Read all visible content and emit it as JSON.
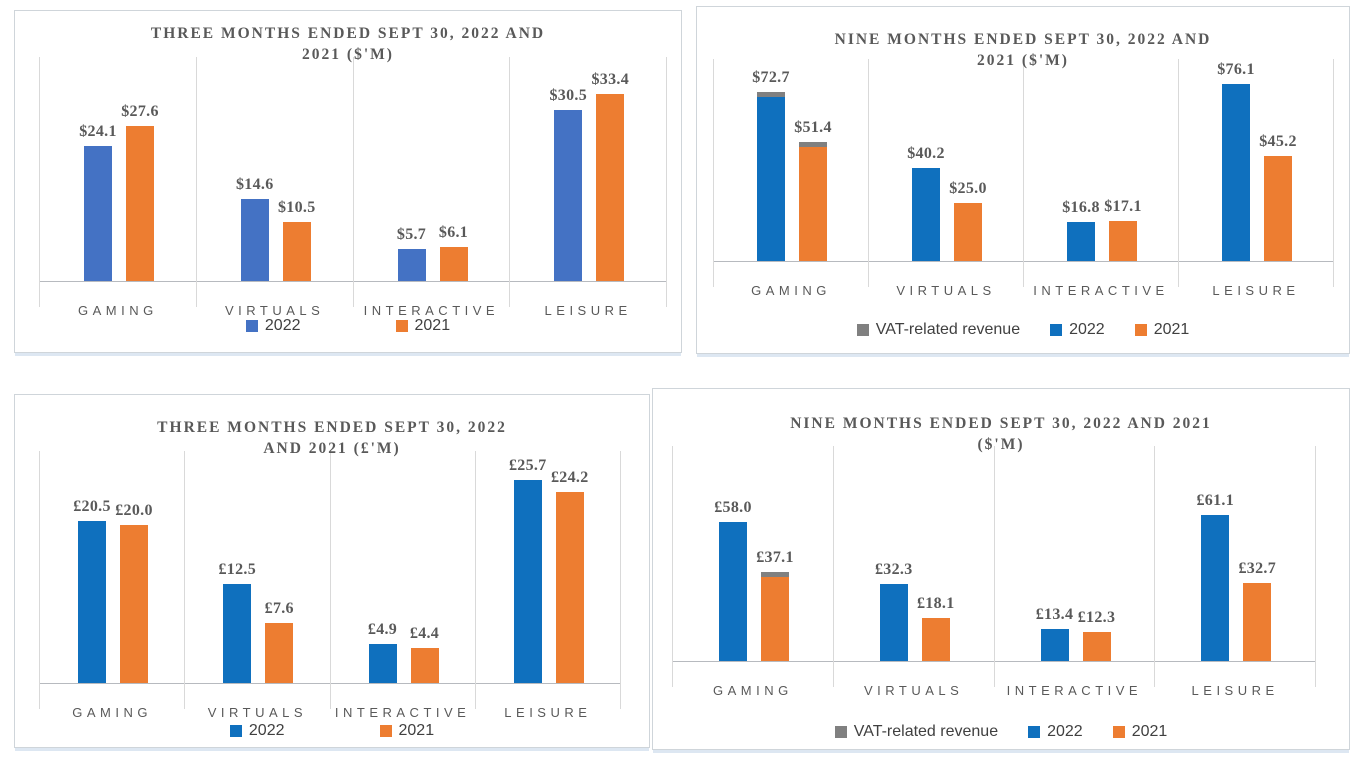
{
  "page": {
    "background": "#FFFFFF"
  },
  "colors": {
    "accent_blue_muted": "#4472C4",
    "accent_blue_vivid": "#0F70BE",
    "accent_orange": "#ED7D31",
    "vat_gray": "#808080",
    "text_gray": "#595959",
    "gridline": "#D9D9D9",
    "axis_line": "#B7BABF",
    "panel_border": "#CFD5DA",
    "panel_shadow": "#DDE7F2"
  },
  "chart_data": [
    {
      "type": "bar",
      "title": "THREE MONTHS ENDED SEPT 30, 2022 AND 2021 ($'M)",
      "title_lines": [
        "THREE MONTHS ENDED SEPT 30, 2022 AND",
        "2021 ($'M)"
      ],
      "categories": [
        "GAMING",
        "VIRTUALS",
        "INTERACTIVE",
        "LEISURE"
      ],
      "series": [
        {
          "name": "2022",
          "color": "#4472C4",
          "values": [
            24.1,
            14.6,
            5.7,
            30.5
          ],
          "labels": [
            "$24.1",
            "$14.6",
            "$5.7",
            "$30.5"
          ],
          "vat_caps": [
            false,
            false,
            false,
            false
          ]
        },
        {
          "name": "2021",
          "color": "#ED7D31",
          "values": [
            27.6,
            10.5,
            6.1,
            33.4
          ],
          "labels": [
            "$27.6",
            "$10.5",
            "$6.1",
            "$33.4"
          ],
          "vat_caps": [
            false,
            false,
            false,
            false
          ]
        }
      ],
      "legend": [
        {
          "label": "2022",
          "color": "#4472C4"
        },
        {
          "label": "2021",
          "color": "#ED7D31"
        }
      ],
      "legend_position": "bottom",
      "grid": "vertical",
      "ylim": [
        0,
        40
      ]
    },
    {
      "type": "bar",
      "title": "NINE MONTHS ENDED SEPT 30, 2022 AND 2021 ($'M)",
      "title_lines": [
        "NINE MONTHS ENDED SEPT 30, 2022 AND",
        "2021 ($'M)"
      ],
      "categories": [
        "GAMING",
        "VIRTUALS",
        "INTERACTIVE",
        "LEISURE"
      ],
      "series": [
        {
          "name": "2022",
          "color": "#0F70BE",
          "values": [
            72.7,
            40.2,
            16.8,
            76.1
          ],
          "labels": [
            "$72.7",
            "$40.2",
            "$16.8",
            "$76.1"
          ],
          "vat_caps": [
            true,
            false,
            false,
            false
          ]
        },
        {
          "name": "2021",
          "color": "#ED7D31",
          "values": [
            51.4,
            25,
            17.1,
            45.2
          ],
          "labels": [
            "$51.4",
            "$25.0",
            "$17.1",
            "$45.2"
          ],
          "vat_caps": [
            true,
            false,
            false,
            false
          ]
        }
      ],
      "legend": [
        {
          "label": "VAT-related revenue",
          "color": "#808080"
        },
        {
          "label": "2022",
          "color": "#0F70BE"
        },
        {
          "label": "2021",
          "color": "#ED7D31"
        }
      ],
      "legend_position": "bottom",
      "grid": "vertical",
      "ylim": [
        0,
        87
      ]
    },
    {
      "type": "bar",
      "title": "THREE MONTHS ENDED SEPT 30, 2022 AND 2021 (£'M)",
      "title_lines": [
        "THREE MONTHS ENDED SEPT 30, 2022",
        "AND 2021 (£'M)"
      ],
      "categories": [
        "GAMING",
        "VIRTUALS",
        "INTERACTIVE",
        "LEISURE"
      ],
      "series": [
        {
          "name": "2022",
          "color": "#0F70BE",
          "values": [
            20.5,
            12.5,
            4.9,
            25.7
          ],
          "labels": [
            "£20.5",
            "£12.5",
            "£4.9",
            "£25.7"
          ],
          "vat_caps": [
            false,
            false,
            false,
            false
          ]
        },
        {
          "name": "2021",
          "color": "#ED7D31",
          "values": [
            20,
            7.6,
            4.4,
            24.2
          ],
          "labels": [
            "£20.0",
            "£7.6",
            "£4.4",
            "£24.2"
          ],
          "vat_caps": [
            false,
            false,
            false,
            false
          ]
        }
      ],
      "legend": [
        {
          "label": "2022",
          "color": "#0F70BE"
        },
        {
          "label": "2021",
          "color": "#ED7D31"
        }
      ],
      "legend_position": "bottom",
      "grid": "vertical",
      "ylim": [
        0,
        29.4
      ]
    },
    {
      "type": "bar",
      "title": "NINE MONTHS ENDED SEPT 30, 2022 AND 2021 ($'M)",
      "title_lines": [
        "NINE MONTHS ENDED SEPT 30, 2022 AND 2021",
        "($'M)"
      ],
      "categories": [
        "GAMING",
        "VIRTUALS",
        "INTERACTIVE",
        "LEISURE"
      ],
      "series": [
        {
          "name": "2022",
          "color": "#0F70BE",
          "values": [
            58,
            32.3,
            13.4,
            61.1
          ],
          "labels": [
            "£58.0",
            "£32.3",
            "£13.4",
            "£61.1"
          ],
          "vat_caps": [
            false,
            false,
            false,
            false
          ]
        },
        {
          "name": "2021",
          "color": "#ED7D31",
          "values": [
            37.1,
            18.1,
            12.3,
            32.7
          ],
          "labels": [
            "£37.1",
            "£18.1",
            "£12.3",
            "£32.7"
          ],
          "vat_caps": [
            true,
            false,
            false,
            false
          ]
        }
      ],
      "legend": [
        {
          "label": "VAT-related revenue",
          "color": "#808080"
        },
        {
          "label": "2022",
          "color": "#0F70BE"
        },
        {
          "label": "2021",
          "color": "#ED7D31"
        }
      ],
      "legend_position": "bottom",
      "grid": "vertical",
      "ylim": [
        0,
        90
      ]
    }
  ]
}
